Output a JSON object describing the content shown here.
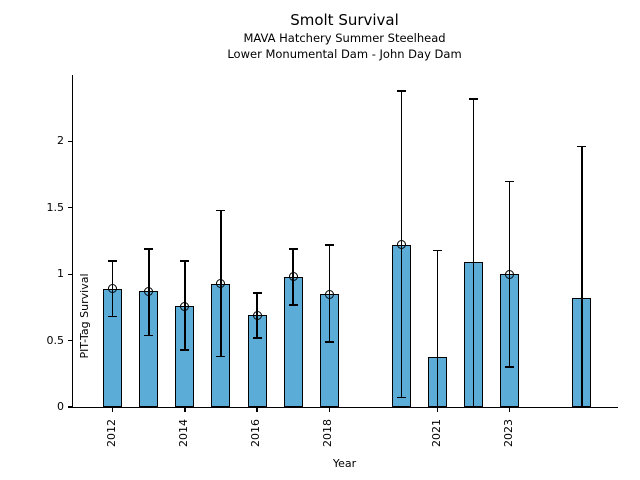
{
  "chart_data": {
    "type": "bar",
    "title": "Smolt Survival",
    "subtitle1": "MAVA Hatchery Summer Steelhead",
    "subtitle2": "Lower Monumental Dam - John Day Dam",
    "xlabel": "Year",
    "ylabel": "PIT-Tag Survival",
    "xlim": [
      2010.9,
      2026.0
    ],
    "ylim": [
      0,
      2.5
    ],
    "x_ticks": [
      2012,
      2014,
      2016,
      2018,
      2021,
      2023
    ],
    "y_ticks": [
      0,
      0.5,
      1,
      1.5,
      2
    ],
    "grid": false,
    "legend": null,
    "bar_color": "#5badd8",
    "bar_edge_color": "#000000",
    "error_color": "#000000",
    "marker_style": "open-circle",
    "points": [
      {
        "year": 2012,
        "value": 0.89,
        "ci_low": 0.68,
        "ci_high": 1.1,
        "marker": true,
        "low_cap": true
      },
      {
        "year": 2013,
        "value": 0.87,
        "ci_low": 0.54,
        "ci_high": 1.19,
        "marker": true,
        "low_cap": true
      },
      {
        "year": 2014,
        "value": 0.76,
        "ci_low": 0.43,
        "ci_high": 1.1,
        "marker": true,
        "low_cap": true
      },
      {
        "year": 2015,
        "value": 0.93,
        "ci_low": 0.38,
        "ci_high": 1.48,
        "marker": true,
        "low_cap": true
      },
      {
        "year": 2016,
        "value": 0.69,
        "ci_low": 0.52,
        "ci_high": 0.86,
        "marker": true,
        "low_cap": true
      },
      {
        "year": 2017,
        "value": 0.98,
        "ci_low": 0.77,
        "ci_high": 1.19,
        "marker": true,
        "low_cap": true
      },
      {
        "year": 2018,
        "value": 0.85,
        "ci_low": 0.49,
        "ci_high": 1.22,
        "marker": true,
        "low_cap": true
      },
      {
        "year": 2020,
        "value": 1.22,
        "ci_low": 0.07,
        "ci_high": 2.38,
        "marker": true,
        "low_cap": true
      },
      {
        "year": 2021,
        "value": 0.38,
        "ci_low": 0.0,
        "ci_high": 1.18,
        "marker": false,
        "low_cap": false
      },
      {
        "year": 2022,
        "value": 1.09,
        "ci_low": 0.0,
        "ci_high": 2.32,
        "marker": false,
        "low_cap": false
      },
      {
        "year": 2023,
        "value": 1.0,
        "ci_low": 0.3,
        "ci_high": 1.7,
        "marker": true,
        "low_cap": true
      },
      {
        "year": 2025,
        "value": 0.82,
        "ci_low": 0.0,
        "ci_high": 1.96,
        "marker": false,
        "low_cap": false
      }
    ]
  }
}
